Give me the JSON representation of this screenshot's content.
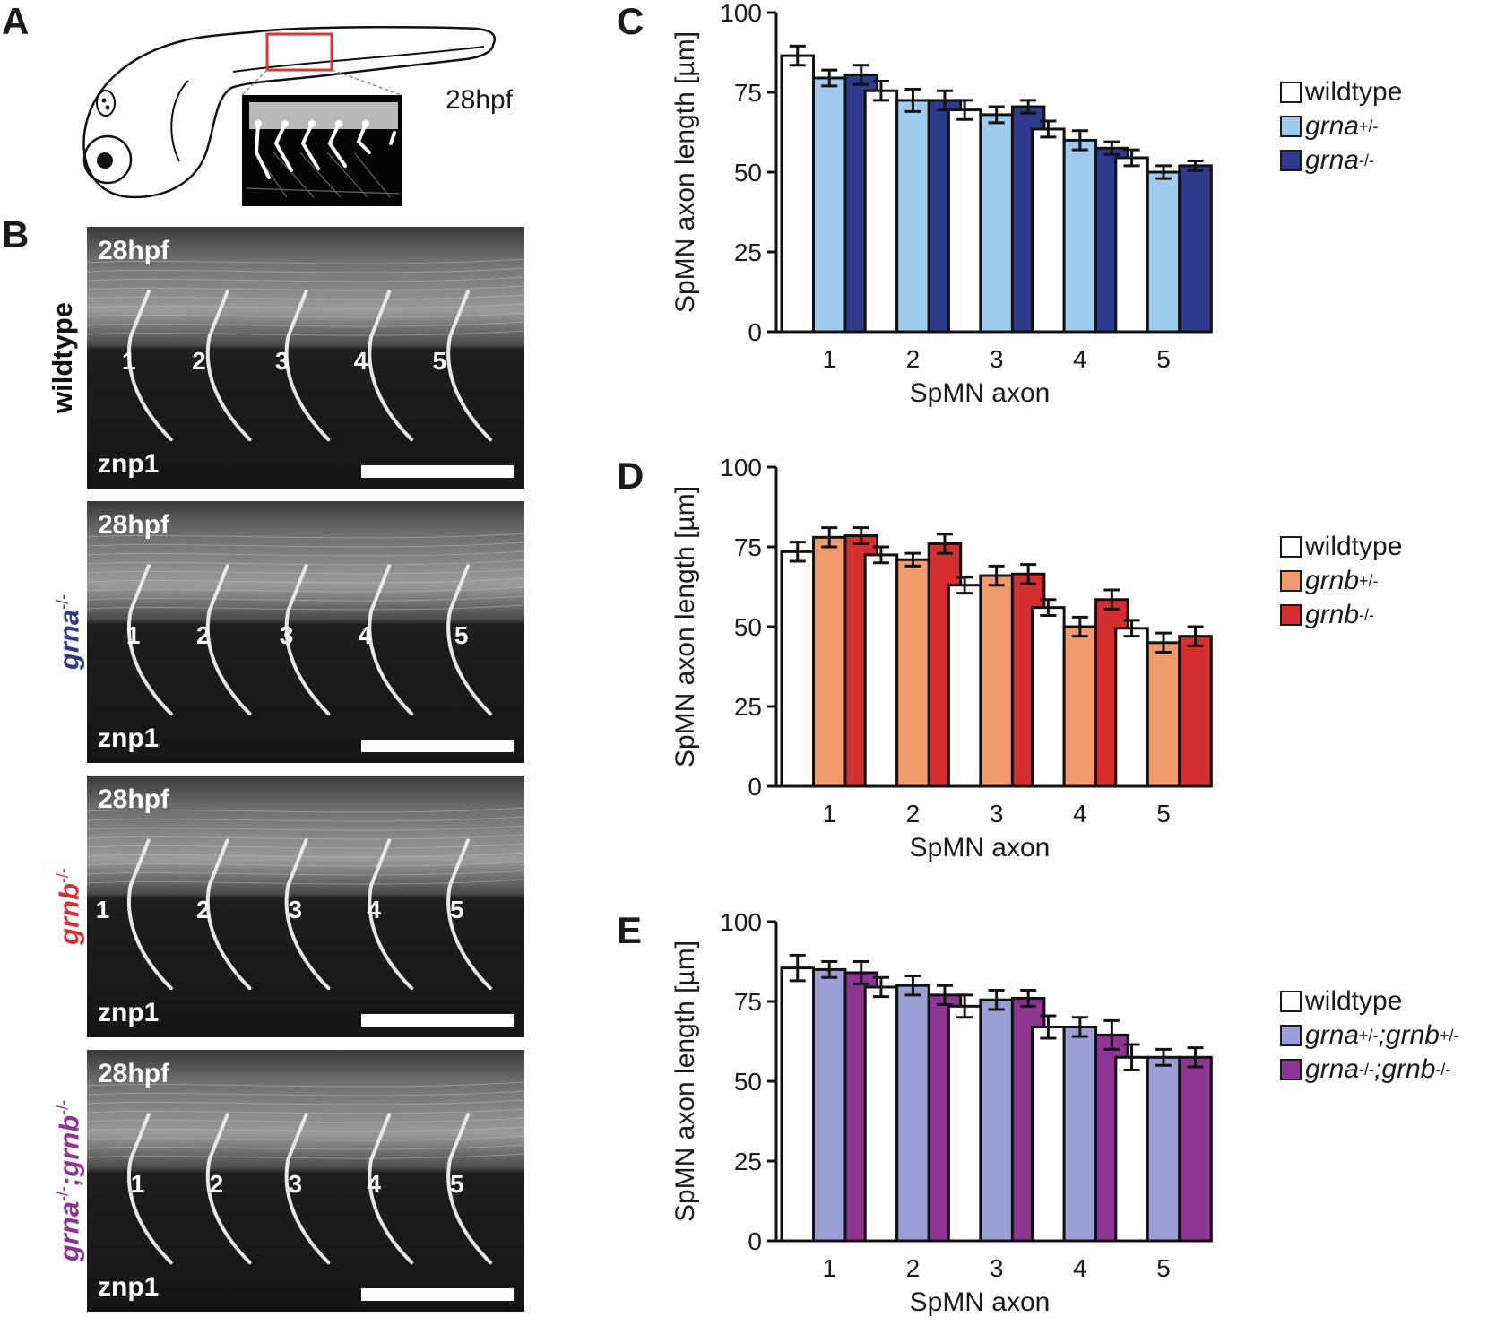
{
  "panels": {
    "A": {
      "letter": "A",
      "stage_label": "28hpf"
    },
    "B": {
      "letter": "B",
      "rows": [
        {
          "top_label": "28hpf",
          "bottom_label": "znp1",
          "genotype_main": "wildtype",
          "genotype_sup": "",
          "genotype_main2": "",
          "genotype_sup2": "",
          "genotype_color": "#111111",
          "genotype_italic": false,
          "axon_numbers": [
            "1",
            "2",
            "3",
            "4",
            "5"
          ]
        },
        {
          "top_label": "28hpf",
          "bottom_label": "znp1",
          "genotype_main": "grna",
          "genotype_sup": "-/-",
          "genotype_main2": "",
          "genotype_sup2": "",
          "genotype_color": "#2e3a8c",
          "genotype_italic": true,
          "axon_numbers": [
            "1",
            "2",
            "3",
            "4",
            "5"
          ]
        },
        {
          "top_label": "28hpf",
          "bottom_label": "znp1",
          "genotype_main": "grnb",
          "genotype_sup": "-/-",
          "genotype_main2": "",
          "genotype_sup2": "",
          "genotype_color": "#d42e2e",
          "genotype_italic": true,
          "axon_numbers": [
            "1",
            "2",
            "3",
            "4",
            "5"
          ]
        },
        {
          "top_label": "28hpf",
          "bottom_label": "znp1",
          "genotype_main": "grna",
          "genotype_sup": "-/-",
          "genotype_main2": ";grnb",
          "genotype_sup2": "-/-",
          "genotype_color": "#8e3591",
          "genotype_italic": true,
          "axon_numbers": [
            "1",
            "2",
            "3",
            "4",
            "5"
          ]
        }
      ]
    },
    "C": {
      "letter": "C"
    },
    "D": {
      "letter": "D"
    },
    "E": {
      "letter": "E"
    }
  },
  "chart_data": [
    {
      "type": "bar",
      "panel": "C",
      "categories": [
        "1",
        "2",
        "3",
        "4",
        "5"
      ],
      "xlabel": "SpMN axon",
      "ylabel": "SpMN axon length [µm]",
      "ylim": [
        0,
        100
      ],
      "yticks": [
        "0",
        "25",
        "50",
        "75",
        "100"
      ],
      "error_bars": true,
      "legend_position": "right",
      "series": [
        {
          "name": "wildtype",
          "name_sup": "",
          "name_italic": false,
          "color": "#ffffff",
          "values": [
            86.5,
            75.5,
            69.5,
            63.5,
            54.5
          ],
          "errors": [
            3.0,
            3.0,
            3.0,
            2.5,
            2.5
          ]
        },
        {
          "name": "grna",
          "name_sup": "+/-",
          "name_italic": true,
          "color": "#9ecbee",
          "values": [
            79.5,
            72.5,
            68.0,
            60.0,
            50.0
          ],
          "errors": [
            2.5,
            3.5,
            2.5,
            3.0,
            2.0
          ]
        },
        {
          "name": "grna",
          "name_sup": "-/-",
          "name_italic": true,
          "color": "#2e3a8c",
          "values": [
            80.5,
            72.5,
            70.5,
            57.5,
            52.0
          ],
          "errors": [
            3.0,
            3.0,
            2.0,
            2.0,
            1.5
          ]
        }
      ]
    },
    {
      "type": "bar",
      "panel": "D",
      "categories": [
        "1",
        "2",
        "3",
        "4",
        "5"
      ],
      "xlabel": "SpMN axon",
      "ylabel": "SpMN axon length [µm]",
      "ylim": [
        0,
        100
      ],
      "yticks": [
        "0",
        "25",
        "50",
        "75",
        "100"
      ],
      "error_bars": true,
      "legend_position": "right",
      "series": [
        {
          "name": "wildtype",
          "name_sup": "",
          "name_italic": false,
          "color": "#ffffff",
          "values": [
            73.5,
            72.5,
            63.0,
            56.0,
            49.5
          ],
          "errors": [
            3.0,
            2.5,
            2.5,
            2.5,
            2.5
          ]
        },
        {
          "name": "grnb",
          "name_sup": "+/-",
          "name_italic": true,
          "color": "#f39a6d",
          "values": [
            78.0,
            71.0,
            66.0,
            50.0,
            45.0
          ],
          "errors": [
            3.0,
            2.0,
            3.0,
            3.0,
            3.0
          ]
        },
        {
          "name": "grnb",
          "name_sup": "-/-",
          "name_italic": true,
          "color": "#d42e2e",
          "values": [
            78.5,
            76.0,
            66.5,
            58.5,
            47.0
          ],
          "errors": [
            2.5,
            3.0,
            3.0,
            3.0,
            3.0
          ]
        }
      ]
    },
    {
      "type": "bar",
      "panel": "E",
      "categories": [
        "1",
        "2",
        "3",
        "4",
        "5"
      ],
      "xlabel": "SpMN axon",
      "ylabel": "SpMN axon length [µm]",
      "ylim": [
        0,
        100
      ],
      "yticks": [
        "0",
        "25",
        "50",
        "75",
        "100"
      ],
      "error_bars": true,
      "legend_position": "right",
      "series": [
        {
          "name": "wildtype",
          "name_sup": "",
          "name_italic": false,
          "color": "#ffffff",
          "values": [
            85.5,
            79.5,
            73.5,
            67.0,
            57.5
          ],
          "errors": [
            4.0,
            3.0,
            3.5,
            3.5,
            4.0
          ]
        },
        {
          "name": "grna",
          "name_sup": "+/-",
          "name2": ";grnb",
          "name2_sup": "+/-",
          "name_italic": true,
          "color": "#9a9fd5",
          "values": [
            85.0,
            80.0,
            75.5,
            67.0,
            57.5
          ],
          "errors": [
            2.5,
            3.0,
            3.0,
            3.0,
            2.5
          ]
        },
        {
          "name": "grna",
          "name_sup": "-/-",
          "name2": ";grnb",
          "name2_sup": "-/-",
          "name_italic": true,
          "color": "#8e3591",
          "values": [
            84.0,
            77.0,
            76.0,
            64.5,
            57.5
          ],
          "errors": [
            3.5,
            3.0,
            2.5,
            4.5,
            3.0
          ]
        }
      ]
    }
  ]
}
